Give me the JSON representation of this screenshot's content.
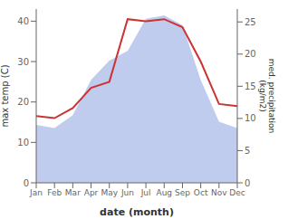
{
  "chart_data": {
    "type": "line",
    "xlabel": "date (month)",
    "ylabel": "max temp (C)",
    "y2label": "med. precipitation\n(kg/m2)",
    "categories": [
      "Jan",
      "Feb",
      "Mar",
      "Apr",
      "May",
      "Jun",
      "Jul",
      "Aug",
      "Sep",
      "Oct",
      "Nov",
      "Dec"
    ],
    "series": [
      {
        "type": "area",
        "axis": "y2",
        "color": "#c0ccee",
        "values": [
          9.0,
          8.5,
          10.5,
          16.0,
          19.0,
          20.5,
          25.5,
          26.0,
          24.5,
          16.0,
          9.5,
          8.5
        ]
      },
      {
        "type": "line",
        "axis": "y",
        "color": "#cc3333",
        "values": [
          16.5,
          16.0,
          18.5,
          23.5,
          25.0,
          40.5,
          40.0,
          40.5,
          38.5,
          30.0,
          19.5,
          19.0
        ]
      }
    ],
    "ylim": [
      0,
      43
    ],
    "yticks": [
      0,
      10,
      20,
      30,
      40
    ],
    "y2lim": [
      0,
      27
    ],
    "y2ticks": [
      0,
      5,
      10,
      15,
      20,
      25
    ],
    "grid": false
  }
}
